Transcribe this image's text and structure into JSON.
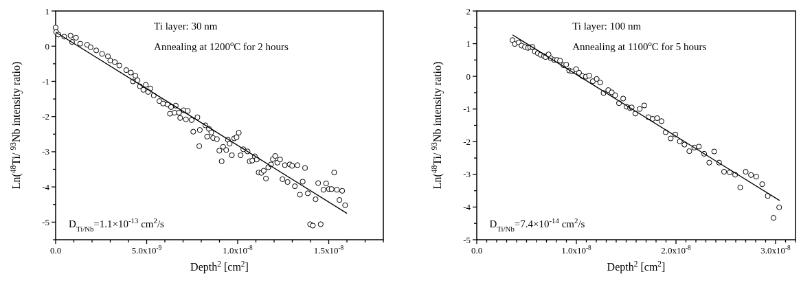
{
  "chart_data": [
    {
      "type": "scatter",
      "xlabel": "Depth$^{2}$  [cm$^{2}$]",
      "ylabel": "Ln($^{48}$Ti/ $^{93}$Nb intensity ratio)",
      "marker": "circle",
      "xlim": [
        0,
        1.8e-08
      ],
      "ylim": [
        -5.5,
        1
      ],
      "xticks": [
        {
          "value": 0,
          "label": "0.0"
        },
        {
          "value": 1e-09,
          "label": null
        },
        {
          "value": 2e-09,
          "label": null
        },
        {
          "value": 3e-09,
          "label": null
        },
        {
          "value": 4e-09,
          "label": null
        },
        {
          "value": 5e-09,
          "label": "5.0x10$^{-9}$"
        },
        {
          "value": 6e-09,
          "label": null
        },
        {
          "value": 7e-09,
          "label": null
        },
        {
          "value": 8e-09,
          "label": null
        },
        {
          "value": 9e-09,
          "label": null
        },
        {
          "value": 1e-08,
          "label": "1.0x10$^{-8}$"
        },
        {
          "value": 1.1e-08,
          "label": null
        },
        {
          "value": 1.2e-08,
          "label": null
        },
        {
          "value": 1.3e-08,
          "label": null
        },
        {
          "value": 1.4e-08,
          "label": null
        },
        {
          "value": 1.5e-08,
          "label": "1.5x10$^{-8}$"
        },
        {
          "value": 1.6e-08,
          "label": null
        },
        {
          "value": 1.7e-08,
          "label": null
        },
        {
          "value": 1.8e-08,
          "label": null
        }
      ],
      "yticks": [
        {
          "value": -5.5,
          "label": null
        },
        -5,
        {
          "value": -4.5,
          "label": null
        },
        -4,
        {
          "value": -3.5,
          "label": null
        },
        -3,
        {
          "value": -2.5,
          "label": null
        },
        -2,
        {
          "value": -1.5,
          "label": null
        },
        -1,
        {
          "value": -0.5,
          "label": null
        },
        0,
        {
          "value": 0.5,
          "label": null
        },
        1
      ],
      "annotations": [
        "Ti layer: 30 nm",
        "Annealing at 1200$^{o}$C for 2 hours",
        "D$_{Ti/Nb}$=1.1×10$^{-13}$ cm$^{2}$/s"
      ],
      "series": [
        {
          "color": "#000000",
          "x": [
            0,
            3e-11,
            1.5e-10,
            4.7e-10,
            8.2e-10,
            1.12e-09,
            9e-10,
            1.35e-09,
            1.73e-09,
            1.92e-09,
            2.23e-09,
            2.55e-09,
            2.87e-09,
            3e-09,
            3.25e-09,
            3.5e-09,
            3.88e-09,
            4.13e-09,
            4.38e-09,
            4.25e-09,
            4.5e-09,
            4.63e-09,
            4.95e-09,
            4.82e-09,
            5.2e-09,
            5.08e-09,
            5.39e-09,
            5.7e-09,
            5.9e-09,
            6.15e-09,
            6.34e-09,
            6.6e-09,
            6.28e-09,
            6.53e-09,
            6.78e-09,
            6.84e-09,
            7.03e-09,
            7.26e-09,
            7.16e-09,
            7.47e-09,
            7.79e-09,
            7.56e-09,
            7.92e-09,
            8.23e-09,
            8.42e-09,
            8.55e-09,
            7.89e-09,
            8.32e-09,
            8.65e-09,
            8.86e-09,
            8.99e-09,
            9.12e-09,
            9.2e-09,
            9.37e-09,
            9.46e-09,
            9.56e-09,
            9.68e-09,
            9.81e-09,
            9.94e-09,
            1.006e-08,
            1.016e-08,
            1.031e-08,
            1.054e-08,
            1.066e-08,
            1.08e-08,
            1.094e-08,
            1.105e-08,
            1.115e-08,
            1.13e-08,
            1.143e-08,
            1.155e-08,
            1.168e-08,
            1.183e-08,
            1.193e-08,
            1.206e-08,
            1.218e-08,
            1.233e-08,
            1.246e-08,
            1.259e-08,
            1.274e-08,
            1.286e-08,
            1.299e-08,
            1.314e-08,
            1.328e-08,
            1.342e-08,
            1.357e-08,
            1.37e-08,
            1.385e-08,
            1.398e-08,
            1.413e-08,
            1.428e-08,
            1.442e-08,
            1.456e-08,
            1.471e-08,
            1.486e-08,
            1.501e-08,
            1.516e-08,
            1.53e-08,
            1.545e-08,
            1.559e-08,
            1.574e-08,
            1.59e-08
          ],
          "values": [
            0.53,
            0.4,
            0.33,
            0.27,
            0.3,
            0.24,
            0.12,
            0.07,
            0.04,
            -0.03,
            -0.12,
            -0.22,
            -0.29,
            -0.41,
            -0.45,
            -0.55,
            -0.68,
            -0.75,
            -0.84,
            -1.0,
            -0.97,
            -1.14,
            -1.1,
            -1.24,
            -1.2,
            -1.3,
            -1.4,
            -1.56,
            -1.63,
            -1.66,
            -1.73,
            -1.69,
            -1.92,
            -1.89,
            -1.89,
            -2.04,
            -1.82,
            -1.84,
            -2.08,
            -2.1,
            -2.02,
            -2.43,
            -2.38,
            -2.25,
            -2.35,
            -2.45,
            -2.84,
            -2.57,
            -2.61,
            -2.64,
            -2.97,
            -3.27,
            -2.86,
            -2.95,
            -2.66,
            -2.77,
            -3.1,
            -2.62,
            -2.59,
            -2.46,
            -3.1,
            -2.93,
            -2.99,
            -3.27,
            -3.25,
            -3.13,
            -3.22,
            -3.59,
            -3.6,
            -3.54,
            -3.76,
            -3.44,
            -3.36,
            -3.21,
            -3.12,
            -3.31,
            -3.22,
            -3.78,
            -3.38,
            -3.86,
            -3.36,
            -3.4,
            -3.98,
            -3.38,
            -4.22,
            -3.85,
            -3.46,
            -4.18,
            -5.06,
            -5.1,
            -4.35,
            -3.89,
            -5.06,
            -4.08,
            -3.9,
            -4.06,
            -4.06,
            -3.59,
            -4.08,
            -4.37,
            -4.11,
            -4.52
          ]
        },
        {
          "type": "line",
          "color": "#000000",
          "marker": "none",
          "x": [
            0,
            1.6e-08
          ],
          "values": [
            0.4,
            -4.75
          ]
        }
      ]
    },
    {
      "type": "scatter",
      "xlabel": "Depth$^{2}$  [cm$^{2}$]",
      "ylabel": "Ln($^{48}$Ti/ $^{93}$Nb intensity ratio)",
      "marker": "circle",
      "xlim": [
        0,
        3.2e-08
      ],
      "ylim": [
        -5,
        2
      ],
      "xticks": [
        {
          "value": 0,
          "label": "0.0"
        },
        {
          "value": 1e-09,
          "label": null
        },
        {
          "value": 2e-09,
          "label": null
        },
        {
          "value": 3e-09,
          "label": null
        },
        {
          "value": 4e-09,
          "label": null
        },
        {
          "value": 5e-09,
          "label": null
        },
        {
          "value": 6e-09,
          "label": null
        },
        {
          "value": 7e-09,
          "label": null
        },
        {
          "value": 8e-09,
          "label": null
        },
        {
          "value": 9e-09,
          "label": null
        },
        {
          "value": 1e-08,
          "label": "1.0x10$^{-8}$"
        },
        {
          "value": 1.1e-08,
          "label": null
        },
        {
          "value": 1.2e-08,
          "label": null
        },
        {
          "value": 1.3e-08,
          "label": null
        },
        {
          "value": 1.4e-08,
          "label": null
        },
        {
          "value": 1.5e-08,
          "label": null
        },
        {
          "value": 1.6e-08,
          "label": null
        },
        {
          "value": 1.7e-08,
          "label": null
        },
        {
          "value": 1.8e-08,
          "label": null
        },
        {
          "value": 1.9e-08,
          "label": null
        },
        {
          "value": 2e-08,
          "label": "2.0x10$^{-8}$"
        },
        {
          "value": 2.1e-08,
          "label": null
        },
        {
          "value": 2.2e-08,
          "label": null
        },
        {
          "value": 2.3e-08,
          "label": null
        },
        {
          "value": 2.4e-08,
          "label": null
        },
        {
          "value": 2.5e-08,
          "label": null
        },
        {
          "value": 2.6e-08,
          "label": null
        },
        {
          "value": 2.7e-08,
          "label": null
        },
        {
          "value": 2.8e-08,
          "label": null
        },
        {
          "value": 2.9e-08,
          "label": null
        },
        {
          "value": 3e-08,
          "label": "3.0x10$^{-8}$"
        },
        {
          "value": 3.1e-08,
          "label": null
        },
        {
          "value": 3.2e-08,
          "label": null
        }
      ],
      "yticks": [
        -5,
        {
          "value": -4.5,
          "label": null
        },
        -4,
        {
          "value": -3.5,
          "label": null
        },
        -3,
        {
          "value": -2.5,
          "label": null
        },
        -2,
        {
          "value": -1.5,
          "label": null
        },
        -1,
        {
          "value": -0.5,
          "label": null
        },
        0,
        {
          "value": 0.5,
          "label": null
        },
        1,
        {
          "value": 1.5,
          "label": null
        },
        2
      ],
      "annotations": [
        "Ti layer: 100 nm",
        "Annealing at 1100$^{o}$C for 5 hours",
        "D$_{Ti/Nb}$=7.4×10$^{-14}$ cm$^{2}$/s"
      ],
      "series": [
        {
          "color": "#000000",
          "x": [
            3.59e-09,
            3.82e-09,
            4.2e-09,
            4.5e-09,
            4.84e-09,
            5.14e-09,
            5.37e-09,
            5.6e-09,
            5.83e-09,
            6.13e-09,
            6.4e-09,
            6.75e-09,
            6.91e-09,
            7.21e-09,
            7.44e-09,
            7.79e-09,
            8.06e-09,
            8.36e-09,
            8.7e-09,
            8.98e-09,
            9.28e-09,
            9.58e-09,
            9.97e-09,
            1.027e-08,
            1.059e-08,
            1.096e-08,
            1.128e-08,
            1.165e-08,
            1.204e-08,
            1.239e-08,
            1.273e-08,
            1.32e-08,
            1.355e-08,
            1.389e-08,
            1.428e-08,
            1.47e-08,
            1.504e-08,
            1.539e-08,
            1.555e-08,
            1.592e-08,
            1.636e-08,
            1.682e-08,
            1.723e-08,
            1.765e-08,
            1.811e-08,
            1.855e-08,
            1.896e-08,
            1.947e-08,
            1.993e-08,
            2.039e-08,
            2.085e-08,
            2.134e-08,
            2.184e-08,
            2.23e-08,
            2.283e-08,
            2.334e-08,
            2.384e-08,
            2.433e-08,
            2.483e-08,
            2.541e-08,
            2.594e-08,
            2.645e-08,
            2.7e-08,
            2.753e-08,
            2.806e-08,
            2.866e-08,
            2.921e-08,
            2.979e-08,
            3.036e-08
          ],
          "values": [
            1.11,
            0.99,
            1.04,
            0.94,
            0.9,
            0.87,
            0.89,
            0.9,
            0.76,
            0.71,
            0.66,
            0.62,
            0.59,
            0.67,
            0.55,
            0.5,
            0.5,
            0.48,
            0.34,
            0.36,
            0.18,
            0.15,
            0.22,
            0.11,
            0.01,
            -0.01,
            0.02,
            -0.15,
            -0.08,
            -0.19,
            -0.51,
            -0.42,
            -0.49,
            -0.58,
            -0.82,
            -0.68,
            -0.93,
            -0.97,
            -0.95,
            -1.14,
            -1.0,
            -0.89,
            -1.25,
            -1.3,
            -1.28,
            -1.37,
            -1.71,
            -1.9,
            -1.78,
            -1.99,
            -2.09,
            -2.29,
            -2.18,
            -2.15,
            -2.37,
            -2.64,
            -2.3,
            -2.64,
            -2.92,
            -2.94,
            -3.01,
            -3.4,
            -2.92,
            -3.02,
            -3.07,
            -3.3,
            -3.66,
            -4.33,
            -4.01
          ]
        },
        {
          "type": "line",
          "color": "#000000",
          "marker": "none",
          "x": [
            3.59e-09,
            3.04e-08
          ],
          "values": [
            1.27,
            -3.8
          ]
        }
      ]
    }
  ]
}
